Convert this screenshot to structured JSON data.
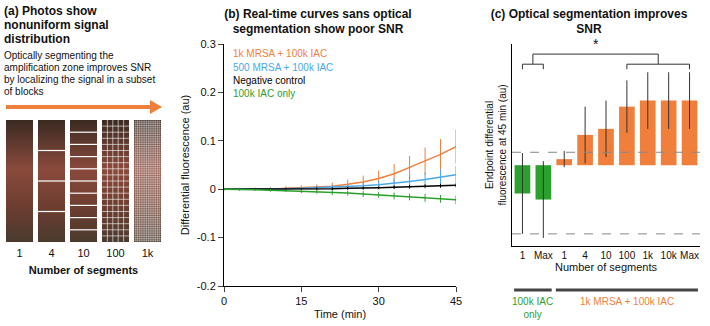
{
  "panel_a": {
    "title": "(a) Photos show nonuniform signal distribution",
    "arrow_text": "Optically segmenting the amplification zone improves SNR by localizing the signal in a subset of blocks",
    "segments": [
      1,
      4,
      10,
      100,
      {
        "value": 1000,
        "label": "1k"
      }
    ],
    "axis_label": "Number of segments"
  },
  "chart_data": [
    {
      "type": "line",
      "title": "(b) Real-time curves sans optical segmentation show poor SNR",
      "xlabel": "Time (min)",
      "ylabel": "Differential fluorescence (au)",
      "x": [
        0,
        3,
        6,
        9,
        12,
        15,
        18,
        21,
        24,
        27,
        30,
        33,
        36,
        39,
        42,
        45
      ],
      "series": [
        {
          "name": "1k MRSA + 100k IAC",
          "color": "#f07f3c",
          "values": [
            0,
            0,
            0,
            0,
            0.002,
            0.003,
            0.004,
            0.006,
            0.01,
            0.015,
            0.022,
            0.032,
            0.045,
            0.058,
            0.072,
            0.088
          ],
          "errors": [
            0.003,
            0.003,
            0.003,
            0.004,
            0.004,
            0.005,
            0.006,
            0.008,
            0.01,
            0.013,
            0.016,
            0.02,
            0.024,
            0.028,
            0.032,
            0.035
          ]
        },
        {
          "name": "500 MRSA + 100k IAC",
          "color": "#4aa8e8",
          "values": [
            0,
            0,
            0,
            0,
            0.001,
            0.002,
            0.003,
            0.004,
            0.005,
            0.007,
            0.009,
            0.012,
            0.016,
            0.02,
            0.025,
            0.03
          ],
          "errors": [
            0.002,
            0.002,
            0.002,
            0.003,
            0.003,
            0.003,
            0.004,
            0.005,
            0.006,
            0.007,
            0.008,
            0.01,
            0.012,
            0.014,
            0.016,
            0.018
          ]
        },
        {
          "name": "Negative control",
          "color": "#000000",
          "values": [
            0,
            0,
            0,
            0,
            0,
            0,
            0.001,
            0.001,
            0.002,
            0.002,
            0.003,
            0.004,
            0.005,
            0.006,
            0.007,
            0.008
          ],
          "errors": [
            0.002,
            0.002,
            0.002,
            0.002,
            0.002,
            0.002,
            0.003,
            0.003,
            0.003,
            0.003,
            0.003,
            0.004,
            0.004,
            0.004,
            0.004,
            0.004
          ]
        },
        {
          "name": "100k IAC only",
          "color": "#2ca02c",
          "values": [
            0,
            0,
            -0.001,
            -0.002,
            -0.003,
            -0.004,
            -0.005,
            -0.007,
            -0.008,
            -0.01,
            -0.012,
            -0.014,
            -0.016,
            -0.018,
            -0.02,
            -0.022
          ],
          "errors": [
            0.002,
            0.002,
            0.002,
            0.003,
            0.003,
            0.004,
            0.004,
            0.005,
            0.005,
            0.006,
            0.006,
            0.007,
            0.007,
            0.008,
            0.008,
            0.009
          ]
        }
      ],
      "xlim": [
        0,
        45
      ],
      "xticks": [
        0,
        15,
        30,
        45
      ],
      "ylim": [
        -0.2,
        0.3
      ],
      "yticks": [
        -0.2,
        -0.1,
        0,
        0.1,
        0.2,
        0.3
      ],
      "grid": false,
      "legend": "top left"
    },
    {
      "type": "bar",
      "title": "(c) Optical segmentation improves SNR",
      "xlabel": "Number of segments",
      "ylabel": "Endpoint differential fluorescence at 45 min (au)",
      "categories": [
        "1",
        "Max",
        "1",
        "4",
        "10",
        "100",
        "1k",
        "10k",
        "Max"
      ],
      "values": [
        -0.07,
        -0.085,
        0.015,
        0.075,
        0.09,
        0.145,
        0.16,
        0.16,
        0.16
      ],
      "errors": [
        0.1,
        0.095,
        0.02,
        0.07,
        0.07,
        0.065,
        0.07,
        0.07,
        0.07
      ],
      "colors": [
        "#2ca02c",
        "#2ca02c",
        "#f07f3c",
        "#f07f3c",
        "#f07f3c",
        "#f07f3c",
        "#f07f3c",
        "#f07f3c",
        "#f07f3c"
      ],
      "groups": [
        {
          "label": "100k IAC only",
          "color": "#2ca02c",
          "from": 0,
          "to": 1
        },
        {
          "label": "1k MRSA + 100k IAC",
          "color": "#f07f3c",
          "from": 2,
          "to": 8
        }
      ],
      "reference_lines": [
        0.032,
        -0.17
      ],
      "significance": {
        "text": "*",
        "from": [
          0,
          1
        ],
        "to": [
          5,
          8
        ]
      },
      "ylim": [
        -0.2,
        0.3
      ],
      "tick_labels": "x",
      "grid": false
    }
  ]
}
